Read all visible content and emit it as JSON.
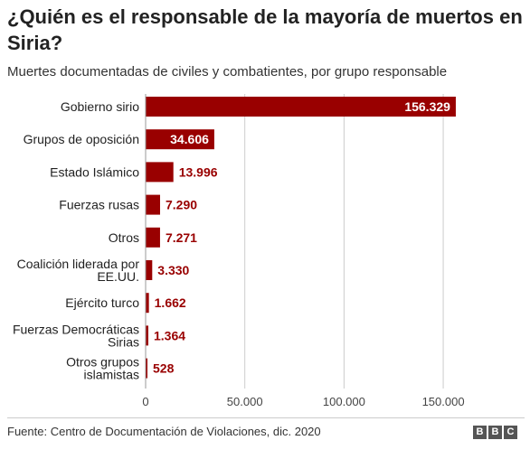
{
  "header": {
    "title": "¿Quién es el responsable de la mayoría de muertos en Siria?",
    "subtitle": "Muertes documentadas de civiles y combatientes, por grupo responsable"
  },
  "footer": {
    "source": "Fuente: Centro de Documentación de Violaciones, dic. 2020",
    "logo_letters": [
      "B",
      "B",
      "C"
    ]
  },
  "colors": {
    "bar": "#990000",
    "value_text": "#990000",
    "value_inside": "#ffffff",
    "grid": "#cccccc"
  },
  "chart_data": {
    "type": "bar",
    "orientation": "horizontal",
    "title": "¿Quién es el responsable de la mayoría de muertos en Siria?",
    "subtitle": "Muertes documentadas de civiles y combatientes, por grupo responsable",
    "categories": [
      "Gobierno sirio",
      "Grupos de oposición",
      "Estado Islámico",
      "Fuerzas rusas",
      "Otros",
      "Coalición liderada por EE.UU.",
      "Ejército turco",
      "Fuerzas Democráticas Sirias",
      "Otros grupos islamistas"
    ],
    "category_lines": [
      [
        "Gobierno sirio"
      ],
      [
        "Grupos de oposición"
      ],
      [
        "Estado Islámico"
      ],
      [
        "Fuerzas rusas"
      ],
      [
        "Otros"
      ],
      [
        "Coalición liderada por",
        "EE.UU."
      ],
      [
        "Ejército turco"
      ],
      [
        "Fuerzas Democráticas",
        "Sirias"
      ],
      [
        "Otros grupos",
        "islamistas"
      ]
    ],
    "values": [
      156329,
      34606,
      13996,
      7290,
      7271,
      3330,
      1662,
      1364,
      528
    ],
    "value_labels": [
      "156.329",
      "34.606",
      "13.996",
      "7.290",
      "7.271",
      "3.330",
      "1.662",
      "1.364",
      "528"
    ],
    "xlim": [
      0,
      160000
    ],
    "xticks": [
      0,
      50000,
      100000,
      150000
    ],
    "xtick_labels": [
      "0",
      "50.000",
      "100.000",
      "150.000"
    ],
    "grid": true,
    "legend": "none"
  }
}
